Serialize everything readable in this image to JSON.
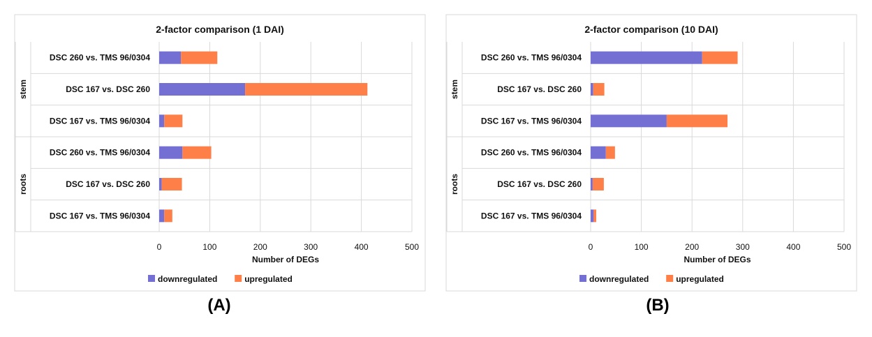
{
  "chart_data": [
    {
      "type": "bar",
      "orientation": "horizontal",
      "stacked": true,
      "title": "2-factor comparison (1 DAI)",
      "xlabel": "Number of DEGs",
      "xlim": [
        0,
        500
      ],
      "xticks": [
        "0",
        "100",
        "200",
        "300",
        "400",
        "500"
      ],
      "grid": true,
      "legend_position": "bottom",
      "groups": [
        {
          "name": "stem",
          "categories": [
            "DSC 260 vs. TMS 96/0304",
            "DSC 167 vs. DSC 260",
            "DSC 167 vs. TMS 96/0304"
          ]
        },
        {
          "name": "roots",
          "categories": [
            "DSC 260 vs. TMS 96/0304",
            "DSC 167 vs. DSC 260",
            "DSC 167 vs. TMS 96/0304"
          ]
        }
      ],
      "series": [
        {
          "name": "downregulated",
          "color": "#7470d3",
          "values": [
            43,
            170,
            10,
            46,
            5,
            10
          ]
        },
        {
          "name": "upregulated",
          "color": "#ff7f48",
          "values": [
            72,
            242,
            36,
            57,
            40,
            16
          ]
        }
      ],
      "panel_label": "(A)"
    },
    {
      "type": "bar",
      "orientation": "horizontal",
      "stacked": true,
      "title": "2-factor comparison (10 DAI)",
      "xlabel": "Number of DEGs",
      "xlim": [
        0,
        500
      ],
      "xticks": [
        "0",
        "100",
        "200",
        "300",
        "400",
        "500"
      ],
      "grid": true,
      "legend_position": "bottom",
      "groups": [
        {
          "name": "stem",
          "categories": [
            "DSC 260 vs. TMS 96/0304",
            "DSC 167 vs. DSC 260",
            "DSC 167 vs. TMS 96/0304"
          ]
        },
        {
          "name": "roots",
          "categories": [
            "DSC 260 vs. TMS 96/0304",
            "DSC 167 vs. DSC 260",
            "DSC 167 vs. TMS 96/0304"
          ]
        }
      ],
      "series": [
        {
          "name": "downregulated",
          "color": "#7470d3",
          "values": [
            220,
            5,
            150,
            30,
            4,
            6
          ]
        },
        {
          "name": "upregulated",
          "color": "#ff7f48",
          "values": [
            70,
            22,
            120,
            18,
            22,
            5
          ]
        }
      ],
      "panel_label": "(B)"
    }
  ]
}
